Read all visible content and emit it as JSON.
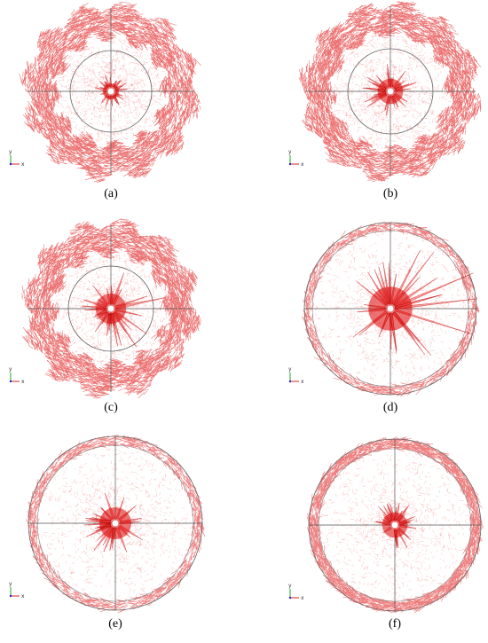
{
  "panels": [
    {
      "caption": "(a)",
      "axis_x": "x",
      "axis_y": "y"
    },
    {
      "caption": "(b)",
      "axis_x": "x",
      "axis_y": "y"
    },
    {
      "caption": "(c)",
      "axis_x": "x",
      "axis_y": "y"
    },
    {
      "caption": "(d)",
      "axis_x": "x",
      "axis_y": "y"
    },
    {
      "caption": "(e)",
      "axis_x": "x",
      "axis_y": "y"
    },
    {
      "caption": "(f)",
      "axis_x": "x",
      "axis_y": "y"
    }
  ]
}
